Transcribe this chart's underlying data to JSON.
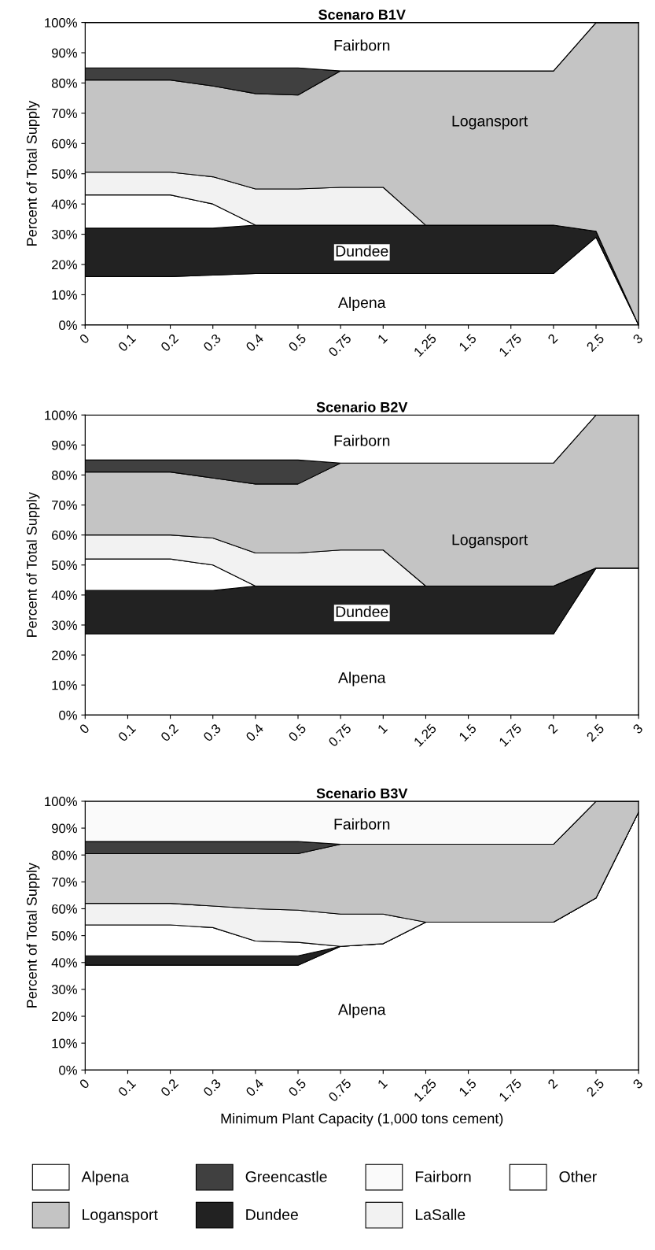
{
  "chart_data": [
    {
      "type": "area",
      "stacked": true,
      "title": "Scenaro B1V",
      "ylabel": "Percent of Total Supply",
      "categories": [
        "0",
        "0.1",
        "0.2",
        "0.3",
        "0.4",
        "0.5",
        "0.75",
        "1",
        "1.25",
        "1.5",
        "1.75",
        "2",
        "2.5",
        "3"
      ],
      "ylim": [
        0,
        100
      ],
      "yticks": [
        {
          "value": 0,
          "label": "0%"
        },
        {
          "value": 10,
          "label": "10%"
        },
        {
          "value": 20,
          "label": "20%"
        },
        {
          "value": 30,
          "label": "30%"
        },
        {
          "value": 40,
          "label": "40%"
        },
        {
          "value": 50,
          "label": "50%"
        },
        {
          "value": 60,
          "label": "60%"
        },
        {
          "value": 70,
          "label": "70%"
        },
        {
          "value": 80,
          "label": "80%"
        },
        {
          "value": 90,
          "label": "90%"
        },
        {
          "value": 100,
          "label": "100%"
        }
      ],
      "series": [
        {
          "name": "Alpena",
          "color": "#ffffff",
          "values": [
            16,
            16,
            16,
            16.5,
            17,
            17,
            17,
            17,
            17,
            17,
            17,
            17,
            29,
            0
          ]
        },
        {
          "name": "Dundee",
          "color": "#222222",
          "values": [
            16,
            16,
            16,
            15.5,
            16,
            16,
            16,
            16,
            16,
            16,
            16,
            16,
            2,
            0
          ]
        },
        {
          "color": "#ffffff",
          "values": [
            11,
            11,
            11,
            8,
            0,
            0,
            0,
            0,
            0,
            0,
            0,
            0,
            0,
            0
          ]
        },
        {
          "color": "#f2f2f2",
          "values": [
            7.5,
            7.5,
            7.5,
            9,
            12,
            12,
            12.5,
            12.5,
            0,
            0,
            0,
            0,
            0,
            0
          ]
        },
        {
          "name": "Logansport",
          "color": "#c4c4c4",
          "values": [
            30.5,
            30.5,
            30.5,
            30,
            31.5,
            31,
            38.5,
            38.5,
            51,
            51,
            51,
            51,
            69,
            100
          ]
        },
        {
          "color": "#404040",
          "values": [
            4,
            4,
            4,
            6,
            8.5,
            9,
            0,
            0,
            0,
            0,
            0,
            0,
            0,
            0
          ]
        },
        {
          "name": "Fairborn",
          "color": "#ffffff",
          "values": [
            15,
            15,
            15,
            15,
            15,
            15,
            16,
            16,
            16,
            16,
            16,
            16,
            0,
            0
          ]
        }
      ],
      "legend": false
    },
    {
      "type": "area",
      "stacked": true,
      "title": "Scenario B2V",
      "ylabel": "Percent of Total Supply",
      "categories": [
        "0",
        "0.1",
        "0.2",
        "0.3",
        "0.4",
        "0.5",
        "0.75",
        "1",
        "1.25",
        "1.5",
        "1.75",
        "2",
        "2.5",
        "3"
      ],
      "ylim": [
        0,
        100
      ],
      "yticks": [
        {
          "value": 0,
          "label": "0%"
        },
        {
          "value": 10,
          "label": "10%"
        },
        {
          "value": 20,
          "label": "20%"
        },
        {
          "value": 30,
          "label": "30%"
        },
        {
          "value": 40,
          "label": "40%"
        },
        {
          "value": 50,
          "label": "50%"
        },
        {
          "value": 60,
          "label": "60%"
        },
        {
          "value": 70,
          "label": "70%"
        },
        {
          "value": 80,
          "label": "80%"
        },
        {
          "value": 90,
          "label": "90%"
        },
        {
          "value": 100,
          "label": "100%"
        }
      ],
      "series": [
        {
          "name": "Alpena",
          "color": "#ffffff",
          "values": [
            27,
            27,
            27,
            27,
            27,
            27,
            27,
            27,
            27,
            27,
            27,
            27,
            49,
            49
          ]
        },
        {
          "name": "Dundee",
          "color": "#222222",
          "values": [
            14.5,
            14.5,
            14.5,
            14.5,
            16,
            16,
            16,
            16,
            16,
            16,
            16,
            16,
            0,
            0
          ]
        },
        {
          "color": "#ffffff",
          "values": [
            10.5,
            10.5,
            10.5,
            8.5,
            0,
            0,
            0,
            0,
            0,
            0,
            0,
            0,
            0,
            0
          ]
        },
        {
          "color": "#f2f2f2",
          "values": [
            8,
            8,
            8,
            9,
            11,
            11,
            12,
            12,
            0,
            0,
            0,
            0,
            0,
            0
          ]
        },
        {
          "name": "Logansport",
          "color": "#c4c4c4",
          "values": [
            21,
            21,
            21,
            20,
            23,
            23,
            29,
            29,
            41,
            41,
            41,
            41,
            51,
            51
          ]
        },
        {
          "color": "#404040",
          "values": [
            4,
            4,
            4,
            6,
            8,
            8,
            0,
            0,
            0,
            0,
            0,
            0,
            0,
            0
          ]
        },
        {
          "name": "Fairborn",
          "color": "#ffffff",
          "values": [
            15,
            15,
            15,
            15,
            15,
            15,
            16,
            16,
            16,
            16,
            16,
            16,
            0,
            0
          ]
        }
      ],
      "legend": false
    },
    {
      "type": "area",
      "stacked": true,
      "title": "Scenario B3V",
      "ylabel": "Percent of Total Supply",
      "xlabel": "Minimum Plant Capacity (1,000 tons cement)",
      "legend": "bottom",
      "categories": [
        "0",
        "0.1",
        "0.2",
        "0.3",
        "0.4",
        "0.5",
        "0.75",
        "1",
        "1.25",
        "1.5",
        "1.75",
        "2",
        "2.5",
        "3"
      ],
      "ylim": [
        0,
        100
      ],
      "yticks": [
        {
          "value": 0,
          "label": "0%"
        },
        {
          "value": 10,
          "label": "10%"
        },
        {
          "value": 20,
          "label": "20%"
        },
        {
          "value": 30,
          "label": "30%"
        },
        {
          "value": 40,
          "label": "40%"
        },
        {
          "value": 50,
          "label": "50%"
        },
        {
          "value": 60,
          "label": "60%"
        },
        {
          "value": 70,
          "label": "70%"
        },
        {
          "value": 80,
          "label": "80%"
        },
        {
          "value": 90,
          "label": "90%"
        },
        {
          "value": 100,
          "label": "100%"
        }
      ],
      "series": [
        {
          "name": "Alpena",
          "color": "#ffffff",
          "values": [
            39,
            39,
            39,
            39,
            39,
            39,
            46,
            47,
            55,
            55,
            55,
            55,
            64,
            96
          ]
        },
        {
          "name": "Dundee",
          "color": "#222222",
          "values": [
            3.5,
            3.5,
            3.5,
            3.5,
            3.5,
            3.5,
            0,
            0,
            0,
            0,
            0,
            0,
            0,
            0
          ]
        },
        {
          "name": "Other",
          "color": "#ffffff",
          "values": [
            11.5,
            11.5,
            11.5,
            10.5,
            5.5,
            5,
            0,
            0,
            0,
            0,
            0,
            0,
            0,
            0
          ]
        },
        {
          "name": "LaSalle",
          "color": "#f2f2f2",
          "values": [
            8,
            8,
            8,
            8,
            12,
            12,
            12,
            11,
            0,
            0,
            0,
            0,
            0,
            0
          ]
        },
        {
          "name": "Logansport",
          "color": "#c4c4c4",
          "values": [
            18.5,
            18.5,
            18.5,
            19.5,
            20.5,
            21,
            26,
            26,
            29,
            29,
            29,
            29,
            36,
            4
          ]
        },
        {
          "name": "Greencastle",
          "color": "#404040",
          "values": [
            4.5,
            4.5,
            4.5,
            4.5,
            4.5,
            4.5,
            0,
            0,
            0,
            0,
            0,
            0,
            0,
            0
          ]
        },
        {
          "name": "Fairborn",
          "color": "#fafafa",
          "values": [
            15,
            15,
            15,
            15,
            15,
            15,
            16,
            16,
            16,
            16,
            16,
            16,
            0,
            0
          ]
        }
      ]
    }
  ]
}
